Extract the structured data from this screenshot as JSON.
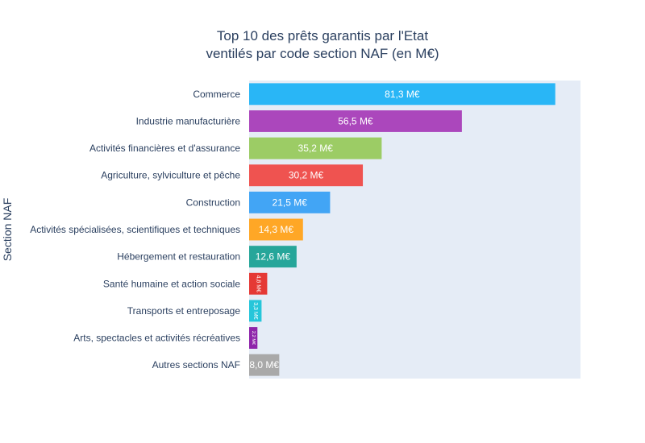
{
  "chart_data": {
    "type": "bar",
    "orientation": "horizontal",
    "title_lines": [
      "Top 10 des prêts garantis par l'Etat",
      "ventilés par code section NAF (en M€)"
    ],
    "ylabel": "Section NAF",
    "xlabel": "",
    "xlim": [
      0,
      88
    ],
    "grid": false,
    "plot_background": "#e5ecf6",
    "categories": [
      "Commerce",
      "Industrie manufacturière",
      "Activités financières et d'assurance",
      "Agriculture, sylviculture et pêche",
      "Construction",
      "Activités spécialisées, scientifiques et techniques",
      "Hébergement et restauration",
      "Santé humaine et action sociale",
      "Transports et entreposage",
      "Arts, spectacles et activités récréatives",
      "Autres sections NAF"
    ],
    "values": [
      81.3,
      56.5,
      35.2,
      30.2,
      21.5,
      14.3,
      12.6,
      4.8,
      3.3,
      2.2,
      8.0
    ],
    "data_labels": [
      "81,3 M€",
      "56,5 M€",
      "35,2 M€",
      "30,2 M€",
      "21,5 M€",
      "14,3 M€",
      "12,6 M€",
      "4,8 M€",
      "3,3 M€",
      "2,2 M€",
      "8,0 M€"
    ],
    "colors": [
      "#29b6f6",
      "#ab47bc",
      "#9ccc65",
      "#ef5350",
      "#42a5f5",
      "#ffa726",
      "#26a69a",
      "#e53935",
      "#26c6da",
      "#8e24aa",
      "#a9a9a9"
    ]
  }
}
